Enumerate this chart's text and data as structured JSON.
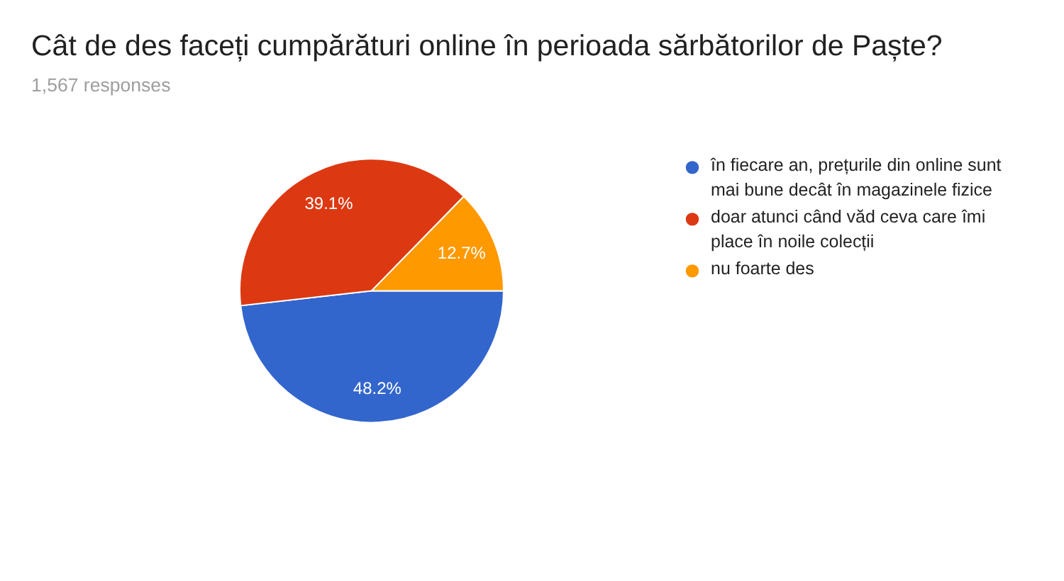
{
  "chart_data": {
    "type": "pie",
    "title": "Cât de des faceți cumpărături online în perioada sărbătorilor de Paște?",
    "subtitle": "1,567 responses",
    "categories": [
      "în fiecare an, prețurile din online sunt mai bune decât în magazinele fizice",
      "doar atunci când văd ceva care îmi place în noile colecții",
      "nu foarte des"
    ],
    "values": [
      48.2,
      39.1,
      12.7
    ],
    "colors": [
      "#3366cc",
      "#dc3912",
      "#ff9900"
    ],
    "value_labels": [
      "48.2%",
      "39.1%",
      "12.7%"
    ],
    "legend": "right"
  }
}
